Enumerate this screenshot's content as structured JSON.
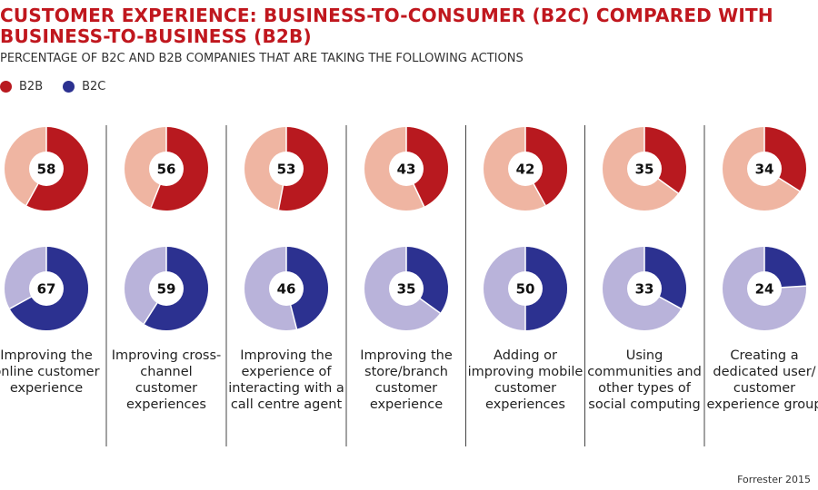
{
  "title": "CUSTOMER EXPERIENCE: BUSINESS-TO-CONSUMER (B2C) COMPARED WITH BUSINESS-TO-BUSINESS (B2B)",
  "subtitle": "PERCENTAGE OF B2C AND B2B COMPANIES THAT ARE TAKING THE FOLLOWING ACTIONS",
  "source": "Forrester 2015",
  "colors": {
    "b2b": "#b8191f",
    "b2b_light": "#efb5a2",
    "b2c": "#2c3190",
    "b2c_light": "#b9b3da",
    "title": "#c0171e"
  },
  "chart_data": {
    "type": "donut",
    "legend": [
      {
        "name": "B2B",
        "color": "#b8191f"
      },
      {
        "name": "B2C",
        "color": "#2c3190"
      }
    ],
    "legend_placement": "top-left",
    "categories": [
      "Improving the online customer experience",
      "Improving cross-channel customer experiences",
      "Improving the experience of interacting with a call centre agent",
      "Improving the store/branch customer experience",
      "Adding or improving mobile customer experiences",
      "Using communities and other types of social computing",
      "Creating a dedicated user/ customer experience group"
    ],
    "series": [
      {
        "name": "B2B",
        "values": [
          58,
          56,
          53,
          43,
          42,
          35,
          34
        ]
      },
      {
        "name": "B2C",
        "values": [
          67,
          59,
          46,
          35,
          50,
          33,
          24
        ]
      }
    ],
    "unit": "%"
  }
}
